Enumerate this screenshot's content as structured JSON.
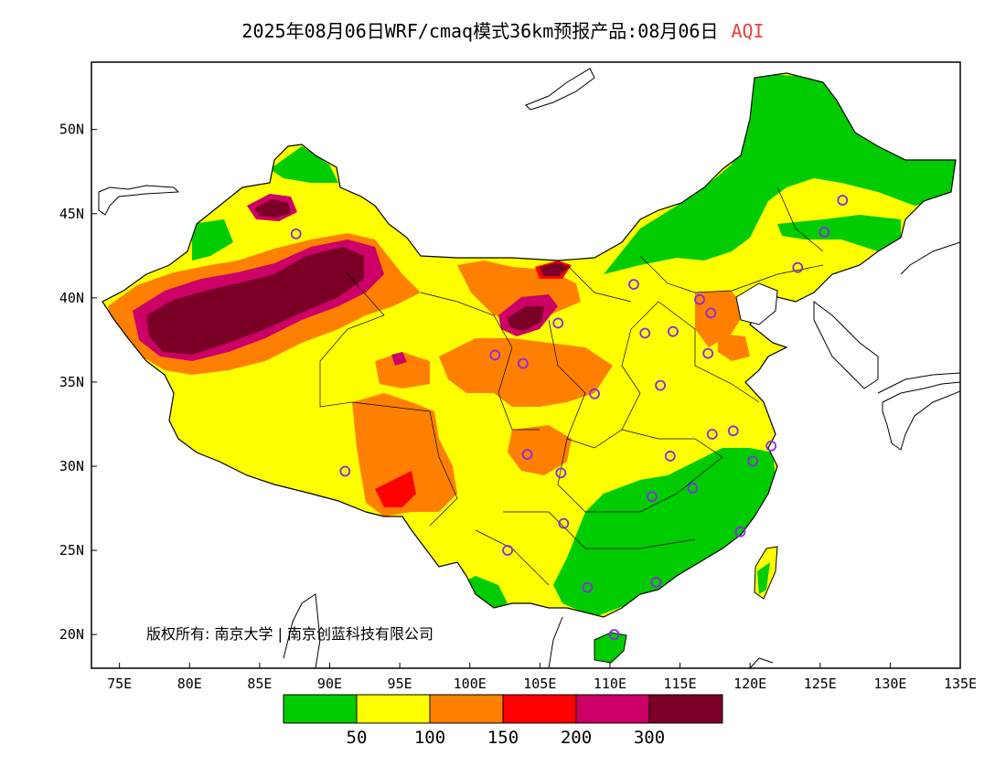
{
  "title": {
    "main": "2025年08月06日WRF/cmaq模式36km预报产品:08月06日",
    "product": "AQI"
  },
  "copyright": "版权所有: 南京大学 | 南京创蓝科技有限公司",
  "axes": {
    "lat_ticks": [
      "50N",
      "45N",
      "40N",
      "35N",
      "30N",
      "25N",
      "20N"
    ],
    "lon_ticks": [
      "75E",
      "80E",
      "85E",
      "90E",
      "95E",
      "100E",
      "105E",
      "110E",
      "115E",
      "120E",
      "125E",
      "130E",
      "135E"
    ],
    "lat_range": [
      18,
      54
    ],
    "lon_range": [
      73,
      135
    ]
  },
  "legend": {
    "colors": [
      "#00cc00",
      "#ffff00",
      "#ff8000",
      "#ff0000",
      "#cc0066",
      "#7a0026"
    ],
    "thresholds": [
      "50",
      "100",
      "150",
      "200",
      "300"
    ]
  },
  "stations": [
    [
      87.6,
      43.8
    ],
    [
      126.6,
      45.8
    ],
    [
      125.3,
      43.9
    ],
    [
      123.4,
      41.8
    ],
    [
      111.7,
      40.8
    ],
    [
      116.4,
      39.9
    ],
    [
      117.2,
      39.1
    ],
    [
      114.5,
      38.0
    ],
    [
      112.5,
      37.9
    ],
    [
      106.3,
      38.5
    ],
    [
      101.8,
      36.6
    ],
    [
      103.8,
      36.1
    ],
    [
      108.9,
      34.3
    ],
    [
      113.6,
      34.8
    ],
    [
      117.0,
      36.7
    ],
    [
      117.3,
      31.9
    ],
    [
      118.8,
      32.1
    ],
    [
      121.5,
      31.2
    ],
    [
      120.2,
      30.3
    ],
    [
      114.3,
      30.6
    ],
    [
      115.9,
      28.7
    ],
    [
      113.0,
      28.2
    ],
    [
      106.5,
      29.6
    ],
    [
      104.1,
      30.7
    ],
    [
      106.7,
      26.6
    ],
    [
      102.7,
      25.0
    ],
    [
      108.4,
      22.8
    ],
    [
      113.3,
      23.1
    ],
    [
      119.3,
      26.1
    ],
    [
      110.3,
      20.0
    ],
    [
      91.1,
      29.7
    ]
  ],
  "colors": {
    "frame": "#000000",
    "station": "#8a2be2",
    "background": "#ffffff"
  }
}
